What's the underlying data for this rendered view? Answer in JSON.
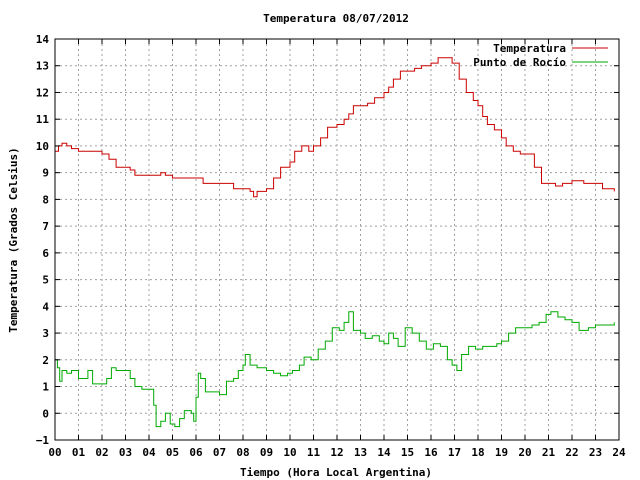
{
  "chart_data": {
    "type": "line",
    "title": "Temperatura 08/07/2012",
    "xlabel": "Tiempo (Hora Local Argentina)",
    "ylabel": "Temperatura (Grados Celsius)",
    "xlim": [
      0,
      24
    ],
    "ylim": [
      -1,
      14
    ],
    "x_ticks": [
      "00",
      "01",
      "02",
      "03",
      "04",
      "05",
      "06",
      "07",
      "08",
      "09",
      "10",
      "11",
      "12",
      "13",
      "14",
      "15",
      "16",
      "17",
      "18",
      "19",
      "20",
      "21",
      "22",
      "23",
      "24"
    ],
    "y_ticks": [
      -1,
      0,
      1,
      2,
      3,
      4,
      5,
      6,
      7,
      8,
      9,
      10,
      11,
      12,
      13,
      14
    ],
    "grid": true,
    "legend_position": "top-right",
    "colors": {
      "temperatura": "#cc0000",
      "punto_de_rocio": "#00aa00"
    },
    "series": [
      {
        "name": "Temperatura",
        "color": "#cc0000",
        "points": [
          [
            0.0,
            9.8
          ],
          [
            0.15,
            10.0
          ],
          [
            0.3,
            10.1
          ],
          [
            0.5,
            10.0
          ],
          [
            0.7,
            9.9
          ],
          [
            1.0,
            9.8
          ],
          [
            1.5,
            9.8
          ],
          [
            2.0,
            9.7
          ],
          [
            2.3,
            9.5
          ],
          [
            2.6,
            9.2
          ],
          [
            3.0,
            9.2
          ],
          [
            3.2,
            9.1
          ],
          [
            3.4,
            8.9
          ],
          [
            3.8,
            8.9
          ],
          [
            4.2,
            8.9
          ],
          [
            4.5,
            9.0
          ],
          [
            4.7,
            8.9
          ],
          [
            5.0,
            8.8
          ],
          [
            5.5,
            8.8
          ],
          [
            6.0,
            8.8
          ],
          [
            6.3,
            8.6
          ],
          [
            7.0,
            8.6
          ],
          [
            7.3,
            8.6
          ],
          [
            7.6,
            8.4
          ],
          [
            8.0,
            8.4
          ],
          [
            8.3,
            8.3
          ],
          [
            8.45,
            8.1
          ],
          [
            8.6,
            8.3
          ],
          [
            9.0,
            8.4
          ],
          [
            9.3,
            8.8
          ],
          [
            9.6,
            9.2
          ],
          [
            10.0,
            9.4
          ],
          [
            10.2,
            9.8
          ],
          [
            10.5,
            10.0
          ],
          [
            10.8,
            9.8
          ],
          [
            11.0,
            10.0
          ],
          [
            11.3,
            10.3
          ],
          [
            11.6,
            10.7
          ],
          [
            12.0,
            10.8
          ],
          [
            12.3,
            11.0
          ],
          [
            12.5,
            11.2
          ],
          [
            12.7,
            11.5
          ],
          [
            13.0,
            11.5
          ],
          [
            13.3,
            11.6
          ],
          [
            13.6,
            11.8
          ],
          [
            14.0,
            12.0
          ],
          [
            14.2,
            12.2
          ],
          [
            14.4,
            12.5
          ],
          [
            14.7,
            12.8
          ],
          [
            15.0,
            12.8
          ],
          [
            15.3,
            12.9
          ],
          [
            15.6,
            13.0
          ],
          [
            16.0,
            13.1
          ],
          [
            16.3,
            13.3
          ],
          [
            16.7,
            13.3
          ],
          [
            16.9,
            13.1
          ],
          [
            17.2,
            12.5
          ],
          [
            17.5,
            12.0
          ],
          [
            17.8,
            11.7
          ],
          [
            18.0,
            11.5
          ],
          [
            18.2,
            11.1
          ],
          [
            18.4,
            10.8
          ],
          [
            18.7,
            10.6
          ],
          [
            19.0,
            10.3
          ],
          [
            19.2,
            10.0
          ],
          [
            19.5,
            9.8
          ],
          [
            19.8,
            9.7
          ],
          [
            20.1,
            9.7
          ],
          [
            20.4,
            9.2
          ],
          [
            20.7,
            8.6
          ],
          [
            21.0,
            8.6
          ],
          [
            21.3,
            8.5
          ],
          [
            21.6,
            8.6
          ],
          [
            22.0,
            8.7
          ],
          [
            22.5,
            8.6
          ],
          [
            23.0,
            8.6
          ],
          [
            23.3,
            8.4
          ],
          [
            23.8,
            8.3
          ]
        ]
      },
      {
        "name": "Punto de Rocío",
        "color": "#00aa00",
        "points": [
          [
            0.0,
            2.0
          ],
          [
            0.1,
            1.7
          ],
          [
            0.2,
            1.2
          ],
          [
            0.3,
            1.6
          ],
          [
            0.5,
            1.5
          ],
          [
            0.7,
            1.6
          ],
          [
            1.0,
            1.3
          ],
          [
            1.3,
            1.3
          ],
          [
            1.4,
            1.6
          ],
          [
            1.6,
            1.1
          ],
          [
            2.0,
            1.1
          ],
          [
            2.2,
            1.3
          ],
          [
            2.4,
            1.7
          ],
          [
            2.6,
            1.6
          ],
          [
            3.0,
            1.6
          ],
          [
            3.2,
            1.3
          ],
          [
            3.4,
            1.0
          ],
          [
            3.7,
            0.9
          ],
          [
            4.0,
            0.9
          ],
          [
            4.2,
            0.3
          ],
          [
            4.3,
            -0.5
          ],
          [
            4.5,
            -0.3
          ],
          [
            4.7,
            0.0
          ],
          [
            4.9,
            -0.4
          ],
          [
            5.1,
            -0.5
          ],
          [
            5.3,
            -0.2
          ],
          [
            5.5,
            0.1
          ],
          [
            5.8,
            0.0
          ],
          [
            5.9,
            -0.3
          ],
          [
            6.0,
            0.6
          ],
          [
            6.1,
            1.5
          ],
          [
            6.2,
            1.3
          ],
          [
            6.4,
            0.8
          ],
          [
            6.8,
            0.8
          ],
          [
            7.0,
            0.7
          ],
          [
            7.3,
            1.2
          ],
          [
            7.6,
            1.3
          ],
          [
            7.8,
            1.6
          ],
          [
            8.0,
            1.8
          ],
          [
            8.1,
            2.2
          ],
          [
            8.3,
            1.8
          ],
          [
            8.6,
            1.7
          ],
          [
            9.0,
            1.6
          ],
          [
            9.3,
            1.5
          ],
          [
            9.6,
            1.4
          ],
          [
            9.9,
            1.5
          ],
          [
            10.1,
            1.6
          ],
          [
            10.4,
            1.8
          ],
          [
            10.6,
            2.1
          ],
          [
            10.9,
            2.0
          ],
          [
            11.2,
            2.4
          ],
          [
            11.5,
            2.7
          ],
          [
            11.8,
            3.2
          ],
          [
            12.1,
            3.1
          ],
          [
            12.3,
            3.4
          ],
          [
            12.5,
            3.8
          ],
          [
            12.7,
            3.1
          ],
          [
            13.0,
            3.0
          ],
          [
            13.2,
            2.8
          ],
          [
            13.5,
            2.9
          ],
          [
            13.8,
            2.7
          ],
          [
            14.0,
            2.6
          ],
          [
            14.2,
            3.0
          ],
          [
            14.4,
            2.8
          ],
          [
            14.6,
            2.5
          ],
          [
            14.9,
            3.2
          ],
          [
            15.2,
            3.0
          ],
          [
            15.5,
            2.7
          ],
          [
            15.8,
            2.4
          ],
          [
            16.1,
            2.6
          ],
          [
            16.4,
            2.5
          ],
          [
            16.7,
            2.0
          ],
          [
            16.9,
            1.8
          ],
          [
            17.1,
            1.6
          ],
          [
            17.3,
            2.2
          ],
          [
            17.6,
            2.5
          ],
          [
            17.9,
            2.4
          ],
          [
            18.2,
            2.5
          ],
          [
            18.5,
            2.5
          ],
          [
            18.8,
            2.6
          ],
          [
            19.0,
            2.7
          ],
          [
            19.3,
            3.0
          ],
          [
            19.6,
            3.2
          ],
          [
            20.0,
            3.2
          ],
          [
            20.3,
            3.3
          ],
          [
            20.6,
            3.4
          ],
          [
            20.9,
            3.7
          ],
          [
            21.1,
            3.8
          ],
          [
            21.4,
            3.6
          ],
          [
            21.7,
            3.5
          ],
          [
            22.0,
            3.4
          ],
          [
            22.3,
            3.1
          ],
          [
            22.7,
            3.2
          ],
          [
            23.0,
            3.3
          ],
          [
            23.4,
            3.3
          ],
          [
            23.8,
            3.4
          ]
        ]
      }
    ]
  }
}
